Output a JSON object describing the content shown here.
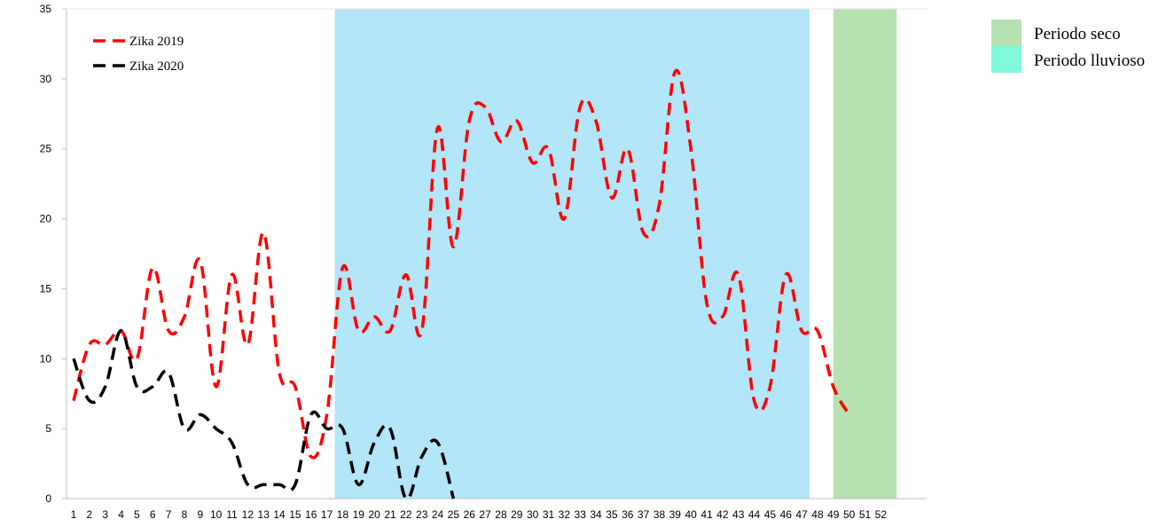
{
  "chart_data": {
    "type": "line",
    "x": [
      1,
      2,
      3,
      4,
      5,
      6,
      7,
      8,
      9,
      10,
      11,
      12,
      13,
      14,
      15,
      16,
      17,
      18,
      19,
      20,
      21,
      22,
      23,
      24,
      25,
      26,
      27,
      28,
      29,
      30,
      31,
      32,
      33,
      34,
      35,
      36,
      37,
      38,
      39,
      40,
      41,
      42,
      43,
      44,
      45,
      46,
      47,
      48,
      49,
      50,
      51,
      52
    ],
    "ylim": [
      0,
      35
    ],
    "yticks": [
      0,
      5,
      10,
      15,
      20,
      25,
      30,
      35
    ],
    "series": [
      {
        "name": "Zika 2019",
        "color": "#ff0000",
        "values": [
          7,
          11,
          11,
          12,
          10,
          16.5,
          12,
          13,
          17,
          8,
          16,
          11,
          19,
          9,
          8,
          3,
          6,
          16.5,
          12,
          13,
          12,
          16,
          12,
          26.5,
          18,
          27,
          28,
          25.5,
          27,
          24,
          25,
          20,
          28,
          27,
          21.5,
          25,
          19,
          21,
          30.5,
          25,
          14,
          13,
          16,
          7,
          8,
          16,
          12,
          12,
          8,
          6,
          null,
          null
        ]
      },
      {
        "name": "Zika 2020",
        "color": "#000000",
        "values": [
          10,
          7,
          8,
          12,
          8,
          8,
          9,
          5,
          6,
          5,
          4,
          1,
          1,
          1,
          1,
          6,
          5,
          5,
          1,
          4,
          5,
          0,
          3,
          4,
          0,
          null,
          null,
          null,
          null,
          null,
          null,
          null,
          null,
          null,
          null,
          null,
          null,
          null,
          null,
          null,
          null,
          null,
          null,
          null,
          null,
          null,
          null,
          null,
          null,
          null,
          null,
          null
        ]
      }
    ],
    "periods": [
      {
        "name": "Periodo lluvioso",
        "start": 17.5,
        "end": 47.5,
        "color": "#7fd6f3"
      },
      {
        "name": "Periodo seco",
        "start": 49,
        "end": 53,
        "color": "#b6e2b1"
      }
    ],
    "side_legend": [
      {
        "label": "Periodo seco",
        "color": "#b6e2b1"
      },
      {
        "label": "Periodo lluvioso",
        "color": "#80f9dc"
      }
    ],
    "grid": false,
    "legend_placement": "top-left"
  }
}
